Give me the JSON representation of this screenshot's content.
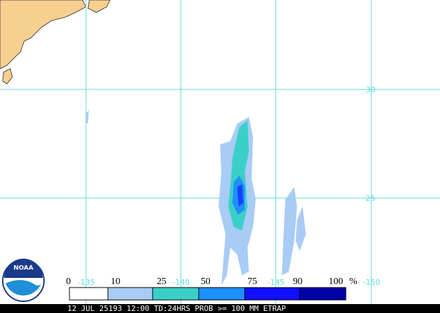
{
  "lon_labels": [
    "-135",
    "-140",
    "-145",
    "-150"
  ],
  "lat_labels": [
    "30",
    "25"
  ],
  "legend": {
    "labels": [
      "0",
      "10",
      "25",
      "50",
      "75",
      "90",
      "100"
    ],
    "unit": "%"
  },
  "logo": "NOAA",
  "footer": "12 JUL 25193 12:00 TD:24HRS PROB >= 100 MM ETRAP"
}
